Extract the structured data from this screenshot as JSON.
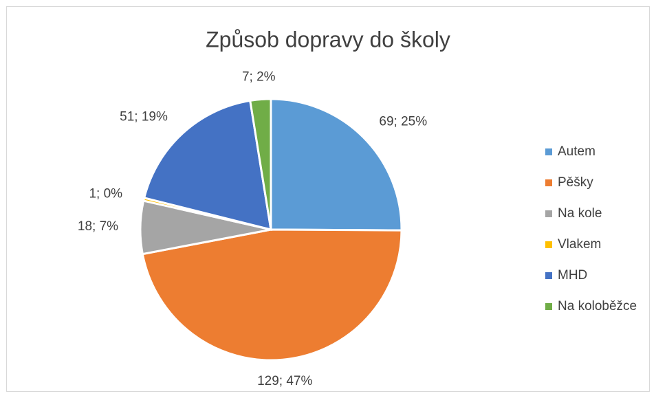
{
  "chart_data": {
    "type": "pie",
    "title": "Způsob dopravy do školy",
    "categories": [
      "Autem",
      "Pěšky",
      "Na kole",
      "Vlakem",
      "MHD",
      "Na koloběžce"
    ],
    "values": [
      69,
      129,
      18,
      1,
      51,
      7
    ],
    "value_labels": [
      "69; 25%",
      "129; 47%",
      "18; 7%",
      "1; 0%",
      "51; 19%",
      "7; 2%"
    ],
    "colors": [
      "#5b9bd5",
      "#ed7d31",
      "#a5a5a5",
      "#ffc000",
      "#4472c4",
      "#70ad47"
    ],
    "legend": "right"
  }
}
